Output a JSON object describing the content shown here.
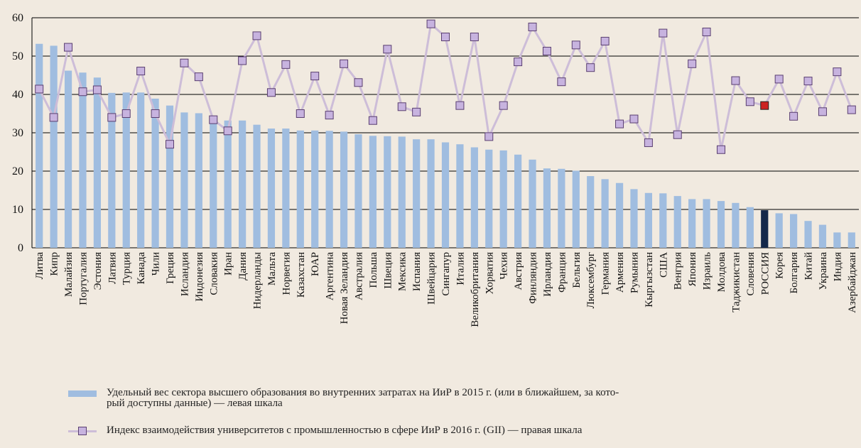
{
  "chart_data": {
    "type": "bar+line",
    "title": "",
    "xlabel": "",
    "ylabel": "",
    "ylim": [
      0,
      60
    ],
    "yticks": [
      0,
      10,
      20,
      30,
      40,
      50,
      60
    ],
    "grid": true,
    "highlight_category": "РОССИЯ",
    "colors": {
      "bar": "#a0bde0",
      "bar_highlight": "#14284a",
      "line": "#cdbdd8",
      "marker_fill": "#c7b3df",
      "marker_stroke": "#5a3f70",
      "marker_highlight": "#cc2222",
      "grid": "#000000"
    },
    "categories": [
      "Литва",
      "Кипр",
      "Малайзия",
      "Португалия",
      "Эстония",
      "Латвия",
      "Турция",
      "Канада",
      "Чили",
      "Греция",
      "Исландия",
      "Индонезия",
      "Словакия",
      "Иран",
      "Дания",
      "Нидерланды",
      "Мальта",
      "Норвегия",
      "Казахстан",
      "ЮАР",
      "Аргентина",
      "Новая Зеландия",
      "Австралия",
      "Польша",
      "Швеция",
      "Мексика",
      "Испания",
      "Швейцария",
      "Сингапур",
      "Италия",
      "Великобритания",
      "Хорватия",
      "Чехия",
      "Австрия",
      "Финляндия",
      "Ирландия",
      "Франция",
      "Бельгия",
      "Люксембург",
      "Германия",
      "Армения",
      "Румыния",
      "Кыргызстан",
      "США",
      "Венгрия",
      "Япония",
      "Израиль",
      "Молдова",
      "Таджикистан",
      "Словения",
      "РОССИЯ",
      "Корея",
      "Болгария",
      "Китай",
      "Украина",
      "Индия",
      "Азербайджан"
    ],
    "series": [
      {
        "name": "Удельный вес сектора высшего образования во внутренних затратах на ИиР в 2015 г. (или в ближайшем, за который доступны данные) — левая шкала",
        "kind": "bar",
        "values": [
          53.2,
          52.7,
          46.2,
          45.7,
          44.4,
          40.4,
          40.5,
          40.5,
          38.9,
          37.1,
          35.3,
          35.1,
          33.4,
          33.2,
          33.2,
          32.1,
          31.1,
          31.1,
          30.6,
          30.6,
          30.5,
          30.3,
          29.6,
          29.2,
          29.1,
          29.0,
          28.3,
          28.3,
          27.5,
          27.0,
          26.2,
          25.6,
          25.4,
          24.3,
          23.0,
          20.7,
          20.6,
          20.1,
          18.7,
          17.9,
          16.9,
          15.3,
          14.3,
          14.2,
          13.5,
          12.7,
          12.7,
          12.2,
          11.7,
          10.6,
          9.8,
          9.0,
          8.8,
          7.0,
          6.0,
          4.0,
          4.0
        ]
      },
      {
        "name": "Индекс взаимодействия университетов с промышленностью в сфере ИиР в 2016 г. (GII) — правая шкала",
        "kind": "line",
        "values": [
          41.4,
          34.0,
          52.3,
          40.7,
          41.2,
          34.0,
          35.0,
          46.1,
          35.0,
          27.0,
          48.2,
          44.6,
          33.4,
          30.5,
          48.8,
          55.3,
          40.5,
          47.8,
          35.0,
          44.8,
          34.6,
          48.0,
          43.1,
          33.2,
          51.8,
          36.8,
          35.4,
          58.4,
          55.0,
          37.1,
          55.0,
          29.0,
          37.1,
          48.5,
          57.6,
          51.3,
          43.3,
          52.9,
          47.0,
          53.9,
          32.3,
          33.6,
          27.4,
          56.0,
          29.5,
          48.0,
          56.3,
          25.6,
          43.6,
          38.1,
          37.1,
          44.0,
          34.3,
          43.5,
          35.5,
          45.9,
          36.0
        ]
      }
    ]
  },
  "legend": {
    "bar_label": "Удельный вес сектора высшего образования во внутренних затратах на ИиР в 2015 г. (или в ближайшем, за кото-рый доступны данные) — левая шкала",
    "bar_label_line1": "Удельный вес сектора высшего образования во внутренних затратах на ИиР в 2015 г. (или в ближайшем, за кото-",
    "bar_label_line2": "рый доступны данные) — левая шкала",
    "line_label": "Индекс взаимодействия университетов с промышленностью в сфере ИиР в 2016 г. (GII) — правая шкала"
  }
}
